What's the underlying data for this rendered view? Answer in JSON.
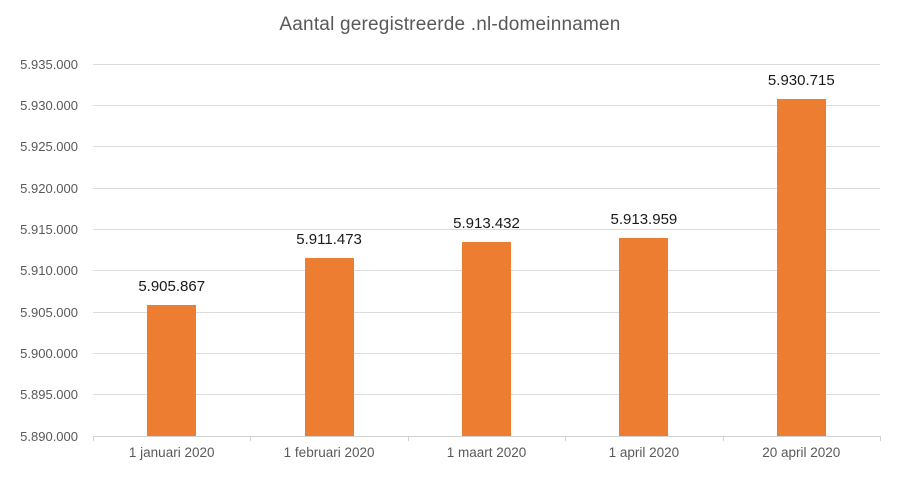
{
  "chart_data": {
    "type": "bar",
    "title": "Aantal geregistreerde .nl-domeinnamen",
    "categories": [
      "1 januari 2020",
      "1 februari 2020",
      "1 maart 2020",
      "1 april 2020",
      "20 april 2020"
    ],
    "values": [
      5905867,
      5911473,
      5913432,
      5913959,
      5930715
    ],
    "value_labels": [
      "5.905.867",
      "5.911.473",
      "5.913.432",
      "5.913.959",
      "5.930.715"
    ],
    "xlabel": "",
    "ylabel": "",
    "ylim": [
      5890000,
      5935000
    ],
    "ytick_step": 5000,
    "ytick_labels": [
      "5.890.000",
      "5.895.000",
      "5.900.000",
      "5.905.000",
      "5.910.000",
      "5.915.000",
      "5.920.000",
      "5.925.000",
      "5.930.000",
      "5.935.000"
    ],
    "grid": true,
    "legend_position": "none",
    "colors": {
      "bar": "#ED7D31",
      "gridline": "#DCDCDC",
      "axis_line": "#D2D2D2",
      "title_text": "#595959",
      "axis_text": "#595959",
      "data_label_text": "#1a1a1a",
      "background": "#FFFFFF"
    }
  }
}
